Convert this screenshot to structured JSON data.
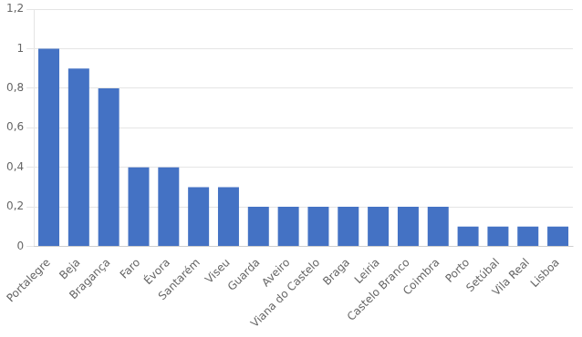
{
  "chart_data": {
    "type": "bar",
    "categories": [
      "Portalegre",
      "Beja",
      "Bragança",
      "Faro",
      "Évora",
      "Santarém",
      "Viseu",
      "Guarda",
      "Aveiro",
      "Viana do Castelo",
      "Braga",
      "Leiria",
      "Castelo Branco",
      "Coimbra",
      "Porto",
      "Setúbal",
      "Vila Real",
      "Lisboa"
    ],
    "values": [
      1.0,
      0.9,
      0.8,
      0.4,
      0.4,
      0.3,
      0.3,
      0.2,
      0.2,
      0.2,
      0.2,
      0.2,
      0.2,
      0.2,
      0.1,
      0.1,
      0.1,
      0.1
    ],
    "color": "#4472C4",
    "ylim": [
      0,
      1.2
    ],
    "yticks": [
      0,
      {
        "value": 0.2,
        "label": "0,2"
      },
      {
        "value": 0.4,
        "label": "0,4"
      },
      {
        "value": 0.6,
        "label": "0,6"
      },
      {
        "value": 0.8,
        "label": "0,8"
      },
      1,
      {
        "value": 1.2,
        "label": "1,2"
      }
    ],
    "grid": true
  }
}
